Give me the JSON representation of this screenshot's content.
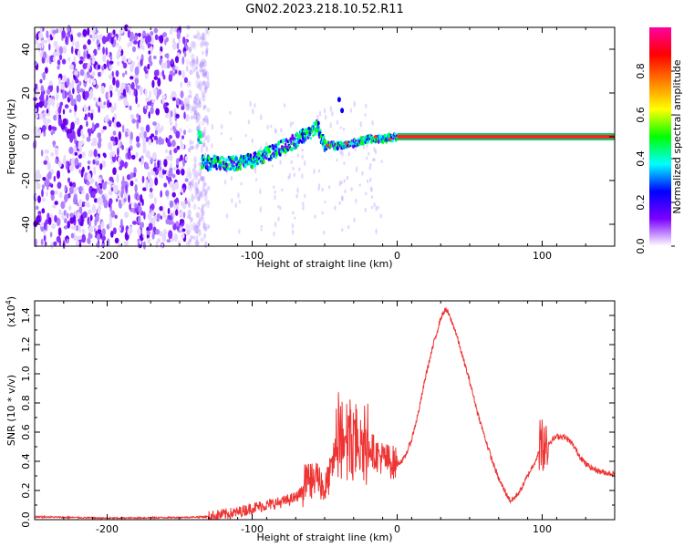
{
  "chart_data": [
    {
      "type": "heatmap",
      "title": "GN02.2023.218.10.52.R11",
      "xlabel": "Height of straight line (km)",
      "ylabel": "Frequency (Hz)",
      "xlim": [
        -250,
        150
      ],
      "ylim": [
        -50,
        50
      ],
      "x_ticks": [
        -200,
        -100,
        0,
        100
      ],
      "y_ticks": [
        -40,
        -20,
        0,
        20,
        40
      ],
      "colorbar": {
        "label": "Normalized spectral amplitude",
        "range": [
          0,
          1
        ],
        "ticks": [
          "0.0",
          "0.2",
          "0.4",
          "0.6",
          "0.8"
        ],
        "colors": [
          "#ffffff",
          "#7b00ff",
          "#0000ff",
          "#00ffff",
          "#00ff00",
          "#ffff00",
          "#ff8000",
          "#ff0000",
          "#ff00a0"
        ]
      },
      "features": {
        "noise_region_x": [
          -250,
          -140
        ],
        "main_line": {
          "y": 0,
          "x": [
            0,
            150
          ],
          "amplitude": 1.0
        },
        "spectral_trace": [
          {
            "x": -135,
            "y": -12
          },
          {
            "x": -120,
            "y": -12
          },
          {
            "x": -110,
            "y": -12
          },
          {
            "x": -100,
            "y": -11
          },
          {
            "x": -90,
            "y": -8
          },
          {
            "x": -80,
            "y": -5
          },
          {
            "x": -70,
            "y": -2
          },
          {
            "x": -60,
            "y": 2
          },
          {
            "x": -55,
            "y": 5
          },
          {
            "x": -50,
            "y": -4
          },
          {
            "x": -40,
            "y": -4
          },
          {
            "x": -30,
            "y": -3
          },
          {
            "x": -20,
            "y": -1
          },
          {
            "x": -10,
            "y": -1
          },
          {
            "x": 0,
            "y": 0
          }
        ],
        "outliers": [
          {
            "x": -40,
            "y": 17
          },
          {
            "x": -38,
            "y": 12
          }
        ]
      }
    },
    {
      "type": "line",
      "xlabel": "Height of straight line (km)",
      "ylabel": "SNR (10 * v/v)",
      "y_multiplier": "(x10",
      "y_multiplier_exp": "4",
      "y_multiplier_close": ")",
      "xlim": [
        -250,
        150
      ],
      "ylim": [
        0,
        1.5
      ],
      "x_ticks": [
        -200,
        -100,
        0,
        100
      ],
      "y_ticks": [
        "0.0",
        "0.2",
        "0.4",
        "0.6",
        "0.8",
        "1.0",
        "1.2",
        "1.4"
      ],
      "color": "#ee3333",
      "series": [
        {
          "x": [
            -250,
            -200,
            -150,
            -130,
            -110,
            -100,
            -90,
            -80,
            -70,
            -60,
            -55,
            -50,
            -45,
            -40,
            -35,
            -30,
            -25,
            -20,
            -15,
            -10,
            -5,
            0,
            5,
            10,
            15,
            20,
            25,
            30,
            33,
            35,
            40,
            45,
            50,
            55,
            60,
            65,
            70,
            75,
            78,
            80,
            85,
            90,
            95,
            100,
            105,
            110,
            115,
            120,
            125,
            130,
            135,
            140,
            145,
            150
          ],
          "values": [
            0.02,
            0.01,
            0.015,
            0.02,
            0.05,
            0.08,
            0.1,
            0.12,
            0.15,
            0.25,
            0.3,
            0.2,
            0.35,
            0.6,
            0.45,
            0.55,
            0.5,
            0.52,
            0.45,
            0.42,
            0.4,
            0.38,
            0.42,
            0.55,
            0.75,
            1.0,
            1.2,
            1.38,
            1.44,
            1.42,
            1.3,
            1.12,
            0.95,
            0.75,
            0.58,
            0.42,
            0.28,
            0.18,
            0.13,
            0.14,
            0.2,
            0.3,
            0.4,
            0.5,
            0.53,
            0.57,
            0.57,
            0.53,
            0.45,
            0.38,
            0.35,
            0.33,
            0.32,
            0.31
          ],
          "spikes": [
            {
              "x_range": [
                -65,
                -55
              ],
              "max": 0.4
            },
            {
              "x_range": [
                -42,
                -38
              ],
              "max": 0.9
            },
            {
              "x_range": [
                -35,
                -28
              ],
              "max": 0.86
            },
            {
              "x_range": [
                -26,
                -20
              ],
              "max": 0.85
            },
            {
              "x_range": [
                98,
                104
              ],
              "max": 0.7
            }
          ]
        }
      ]
    }
  ]
}
